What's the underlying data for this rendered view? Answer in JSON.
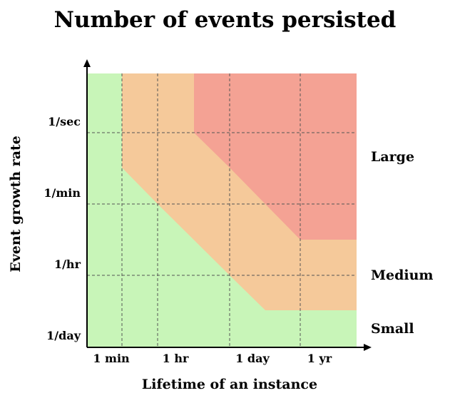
{
  "chart_data": {
    "type": "area",
    "title": "Number of events persisted",
    "xlabel": "Lifetime of an instance",
    "ylabel": "Event growth rate",
    "x_ticks": [
      "1 min",
      "1 hr",
      "1 day",
      "1 yr"
    ],
    "y_ticks": [
      "1/day",
      "1/hr",
      "1/min",
      "1/sec"
    ],
    "grid": true,
    "zones": [
      {
        "name": "Small",
        "color": "#c8f5b8"
      },
      {
        "name": "Medium",
        "color": "#f5c99a"
      },
      {
        "name": "Large",
        "color": "#f4a294"
      }
    ]
  }
}
